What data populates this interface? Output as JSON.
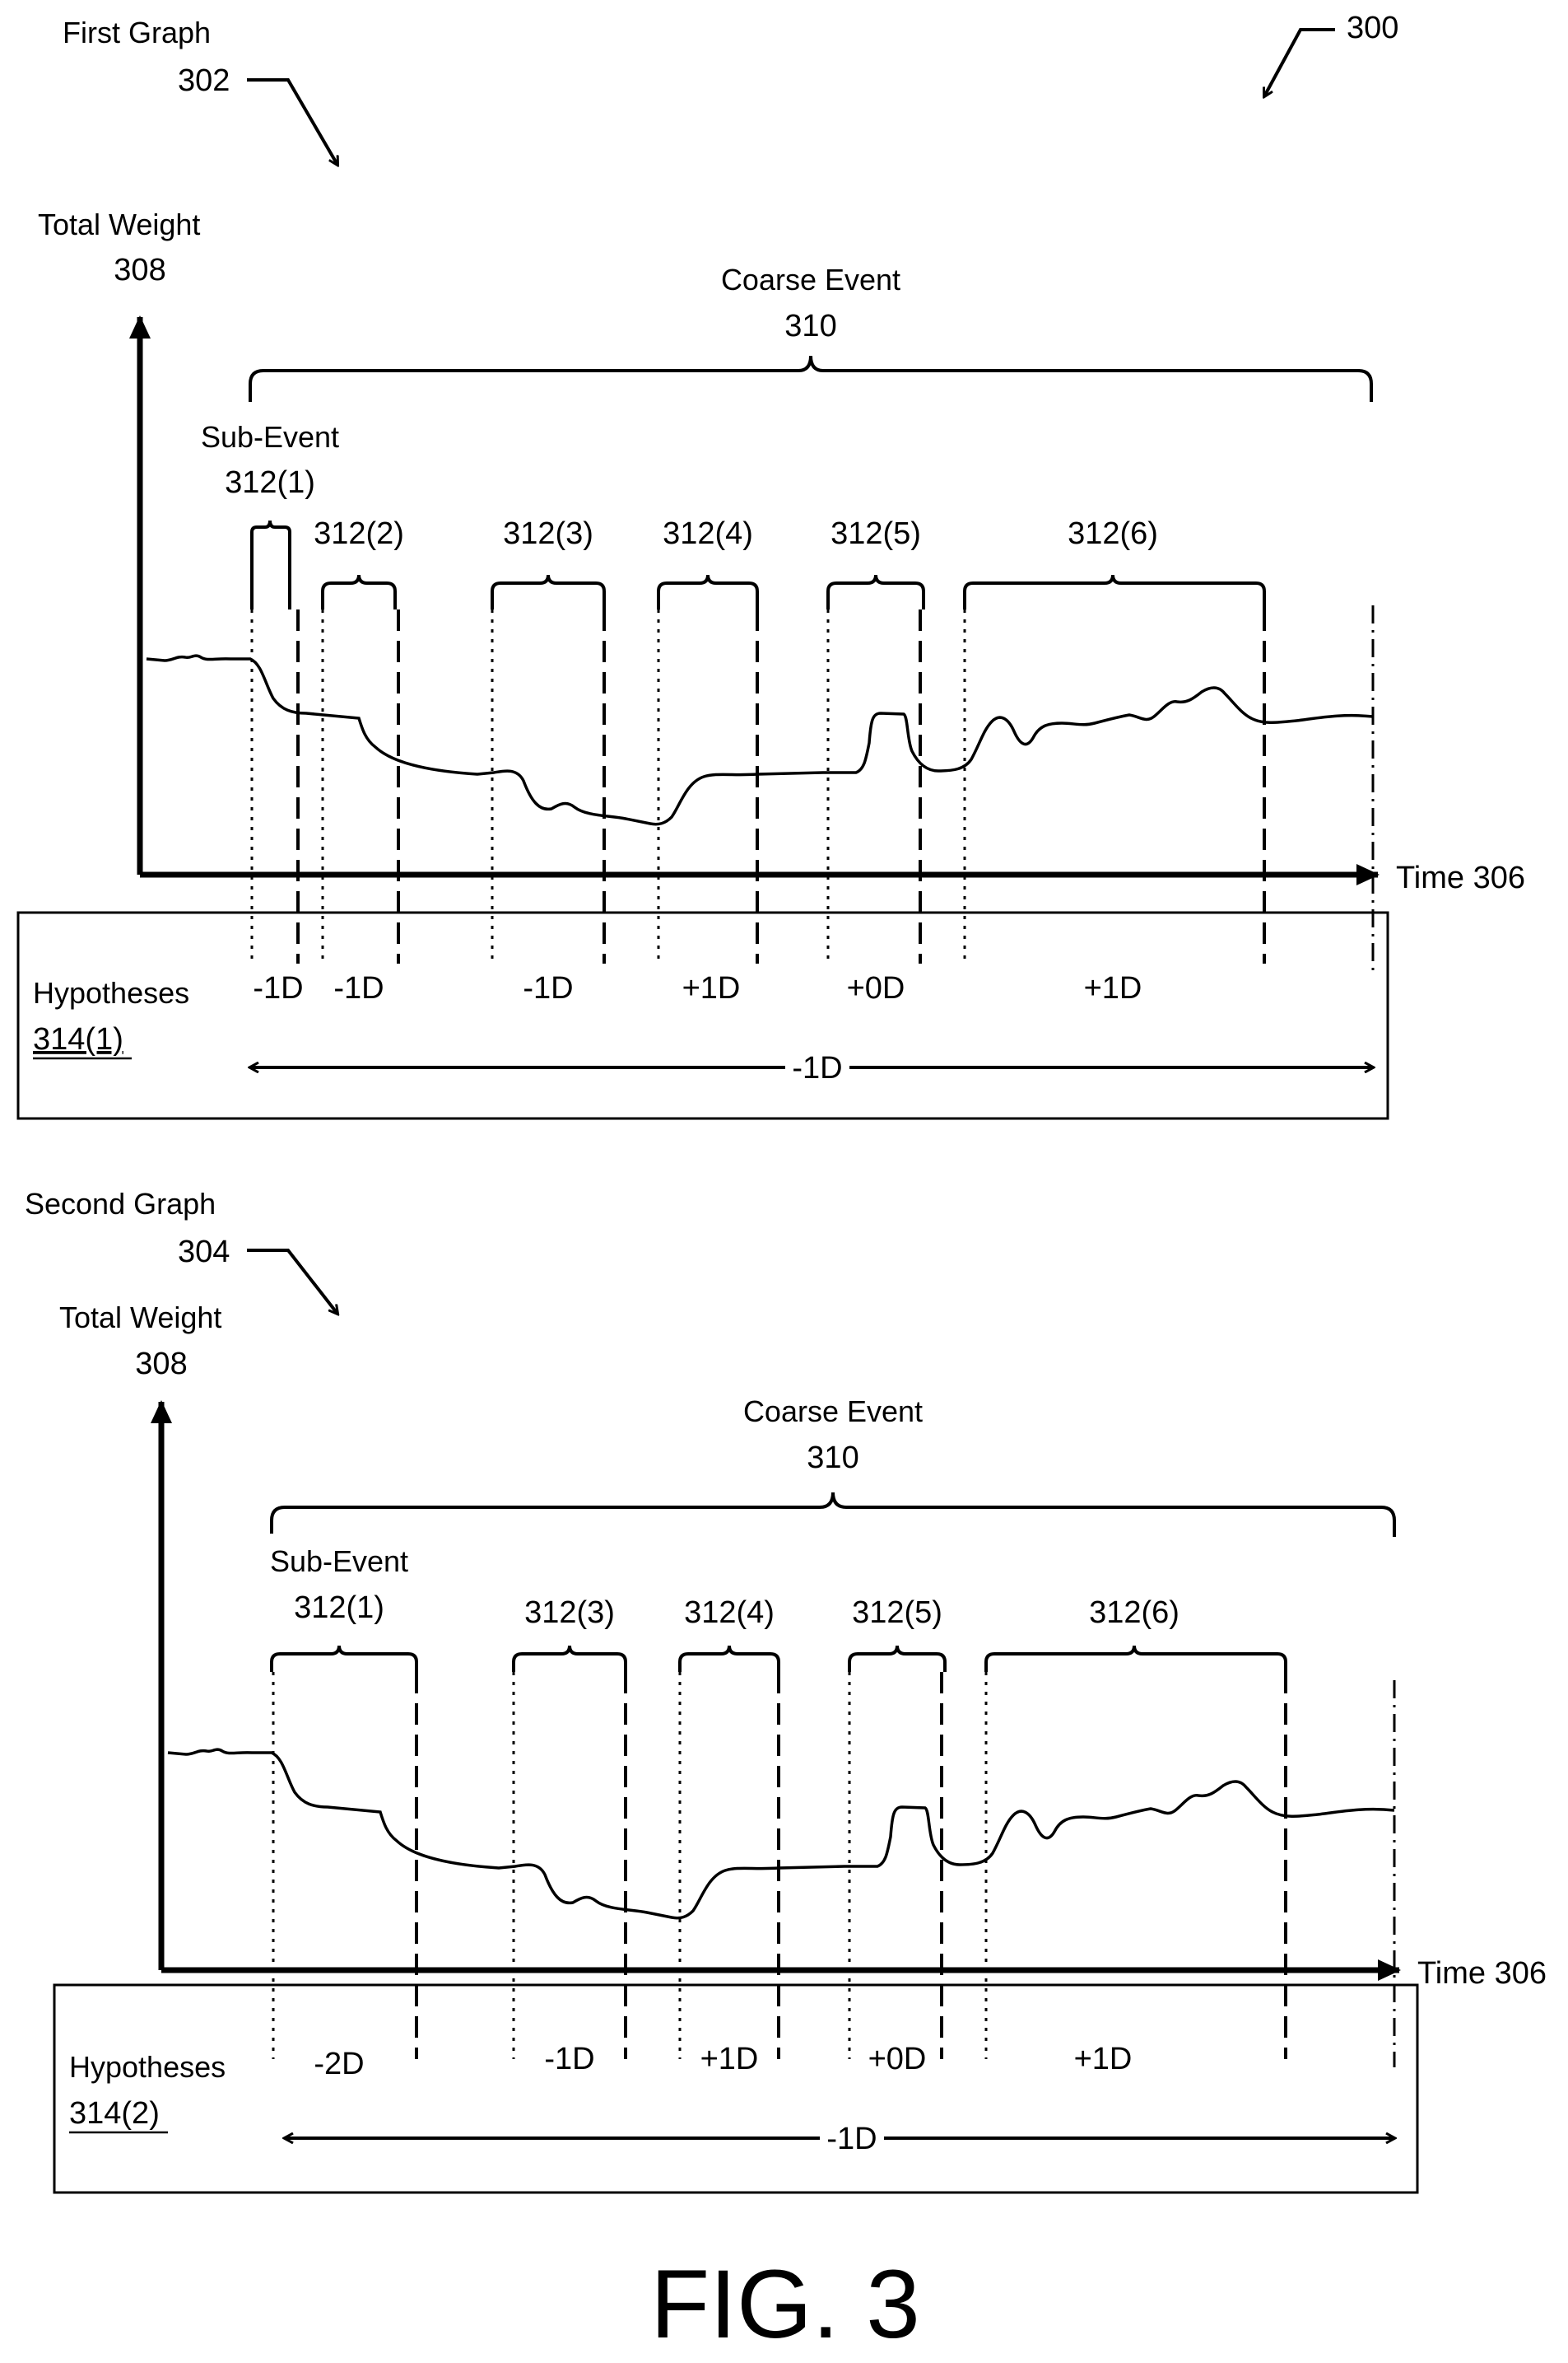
{
  "figure_ref": "300",
  "figure_caption": "FIG. 3",
  "time_axis_label": "Time 306",
  "y_axis_label": "Total Weight",
  "y_axis_number": "308",
  "coarse_event_label": "Coarse Event",
  "coarse_event_number": "310",
  "sub_event_label": "Sub-Event",
  "hypotheses_label": "Hypotheses",
  "graphs": [
    {
      "title": "First Graph",
      "title_number": "302",
      "hypotheses_ref": "314(1)",
      "sub_event_numbers": [
        "312(1)",
        "312(2)",
        "312(3)",
        "312(4)",
        "312(5)",
        "312(6)"
      ],
      "hypothesis_values": [
        "-1D",
        "-1D",
        "-1D",
        "+1D",
        "+0D",
        "+1D"
      ],
      "overall_hypothesis": "-1D"
    },
    {
      "title": "Second Graph",
      "title_number": "304",
      "hypotheses_ref": "314(2)",
      "sub_event_numbers": [
        "312(1)",
        "312(3)",
        "312(4)",
        "312(5)",
        "312(6)"
      ],
      "hypothesis_values": [
        "-2D",
        "-1D",
        "+1D",
        "+0D",
        "+1D"
      ],
      "overall_hypothesis": "-1D"
    }
  ]
}
